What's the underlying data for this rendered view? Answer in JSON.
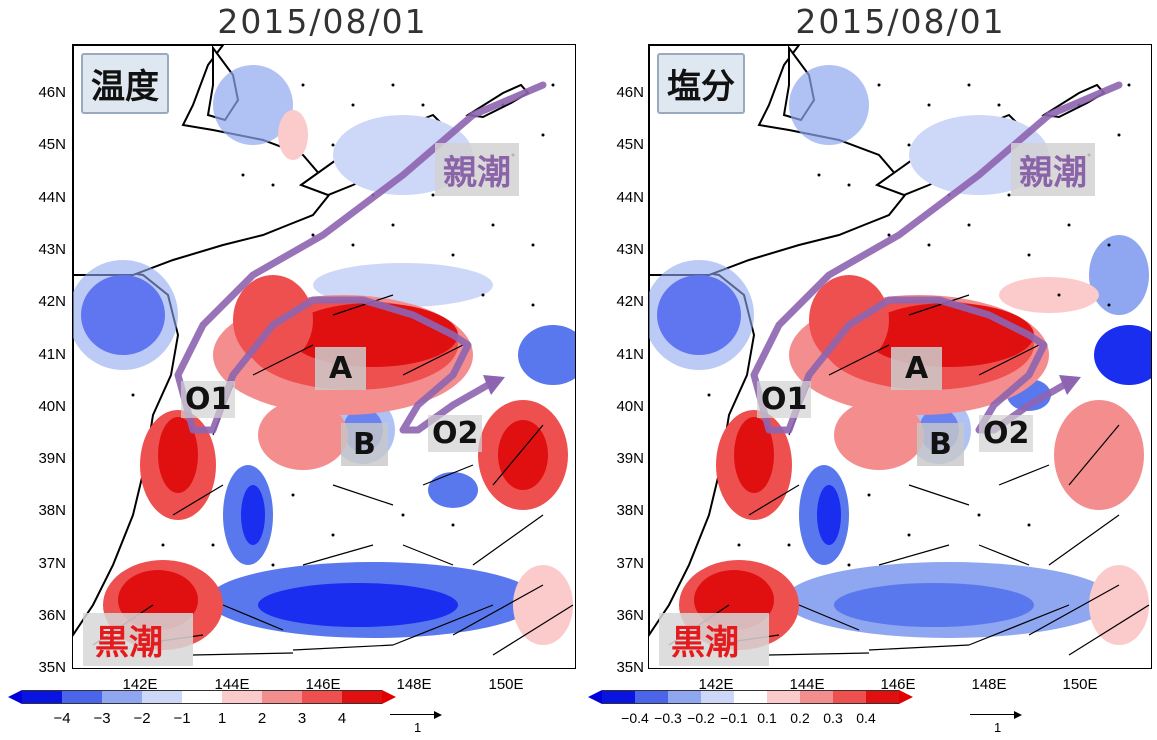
{
  "panels": [
    {
      "date": "2015/08/01",
      "badge": "温度",
      "colorbar_ticks": [
        "−4",
        "−3",
        "−2",
        "−1",
        "1",
        "2",
        "3",
        "4"
      ]
    },
    {
      "date": "2015/08/01",
      "badge": "塩分",
      "colorbar_ticks": [
        "−0.4",
        "−0.3",
        "−0.2",
        "−0.1",
        "0.1",
        "0.2",
        "0.3",
        "0.4"
      ]
    }
  ],
  "labels": {
    "oyashio": "親潮",
    "kuroshio": "黒潮",
    "A": "A",
    "B": "B",
    "O1": "O1",
    "O2": "O2"
  },
  "lat_ticks": [
    "46N",
    "45N",
    "44N",
    "43N",
    "42N",
    "41N",
    "40N",
    "39N",
    "38N",
    "37N",
    "36N",
    "35N"
  ],
  "lon_ticks": [
    "142E",
    "144E",
    "146E",
    "148E",
    "150E"
  ],
  "ref_vector_label": "1",
  "colors": {
    "colorbar": [
      "#0a14e0",
      "#4a64ea",
      "#8fa6f0",
      "#cdd8f8",
      "#ffffff",
      "#fbcaca",
      "#f48e8e",
      "#ee5050",
      "#e01010"
    ],
    "oyashio_path": "#8e64b0",
    "kuroshio_label": "#e41a1c",
    "badge_bg": "#dfe7f1"
  }
}
